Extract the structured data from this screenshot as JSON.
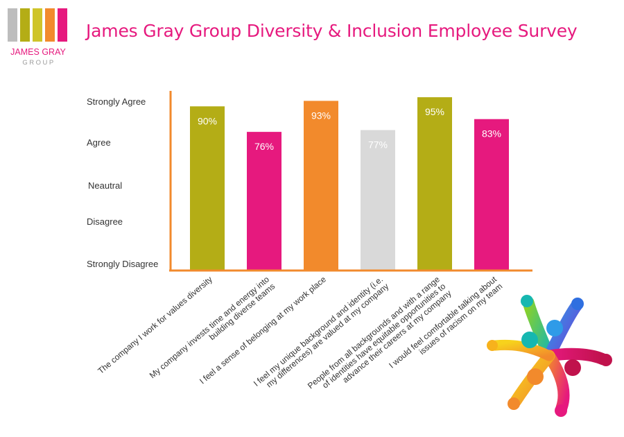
{
  "brand": {
    "logo_line1": "JAMES GRAY",
    "logo_line2": "GROUP",
    "stripe_colors": [
      "#bdbdbd",
      "#b4ad16",
      "#cfc42a",
      "#f28a2c",
      "#e6197e"
    ],
    "text_color": "#e6197e",
    "subtext_color": "#9a9a9a"
  },
  "header": {
    "title": "James Gray Group Diversity & Inclusion Employee Survey"
  },
  "illustration": {
    "icon": "diverse-hands-circle-icon"
  },
  "chart_data": {
    "type": "bar",
    "y_scale": [
      "Strongly Disagree",
      "Disagree",
      "Neautral",
      "Agree",
      "Strongly Agree"
    ],
    "categories": [
      "The company I work for values diversity",
      "My company invests time and energy into building diverse teams",
      "I feel a sense of belonging at my work place",
      "I feel my unique background and identity (i.e. my differences) are valued at my company",
      "People from all backgrounds and with a range of identities have equitable opportunities to advance their careers at my company",
      "I would feel comfortable talking about issues of racism on my team"
    ],
    "category_lines": [
      [
        "The company I work for values diversity"
      ],
      [
        "My company invests time and energy into",
        "building diverse teams"
      ],
      [
        "I feel a sense of belonging at my work place"
      ],
      [
        "I feel my unique background and identity (i.e.",
        "my differences) are valued at my company"
      ],
      [
        "People from all backgrounds and with a range",
        "of  identities  have  equitable  opportunities  to",
        "advance their careers at my company"
      ],
      [
        "I would feel comfortable talking about",
        "issues of racism on my team"
      ]
    ],
    "values": [
      90,
      76,
      93,
      77,
      95,
      83
    ],
    "value_labels": [
      "90%",
      "76%",
      "93%",
      "77%",
      "95%",
      "83%"
    ],
    "colors": [
      "#b4ad16",
      "#e6197e",
      "#f28a2c",
      "#d9d9d9",
      "#b4ad16",
      "#e6197e"
    ],
    "axis_color": "#f28a2c",
    "ylim": [
      0,
      100
    ],
    "grid": false,
    "legend": "none"
  }
}
